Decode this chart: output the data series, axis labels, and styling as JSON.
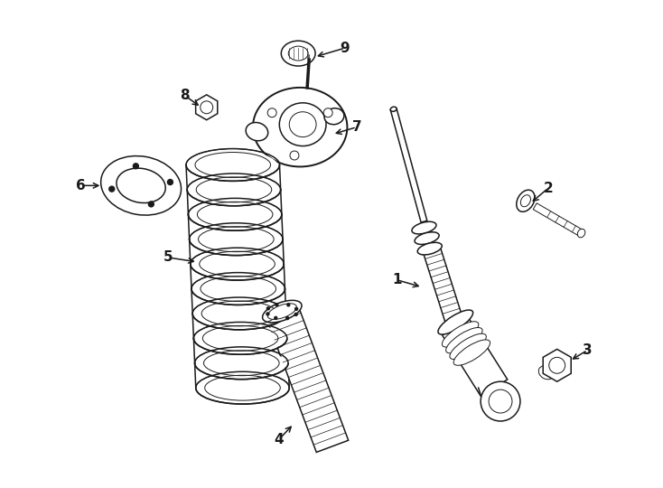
{
  "background_color": "#ffffff",
  "line_color": "#1a1a1a",
  "figure_width": 7.34,
  "figure_height": 5.4,
  "dpi": 100,
  "xlim": [
    0,
    734
  ],
  "ylim": [
    0,
    540
  ]
}
